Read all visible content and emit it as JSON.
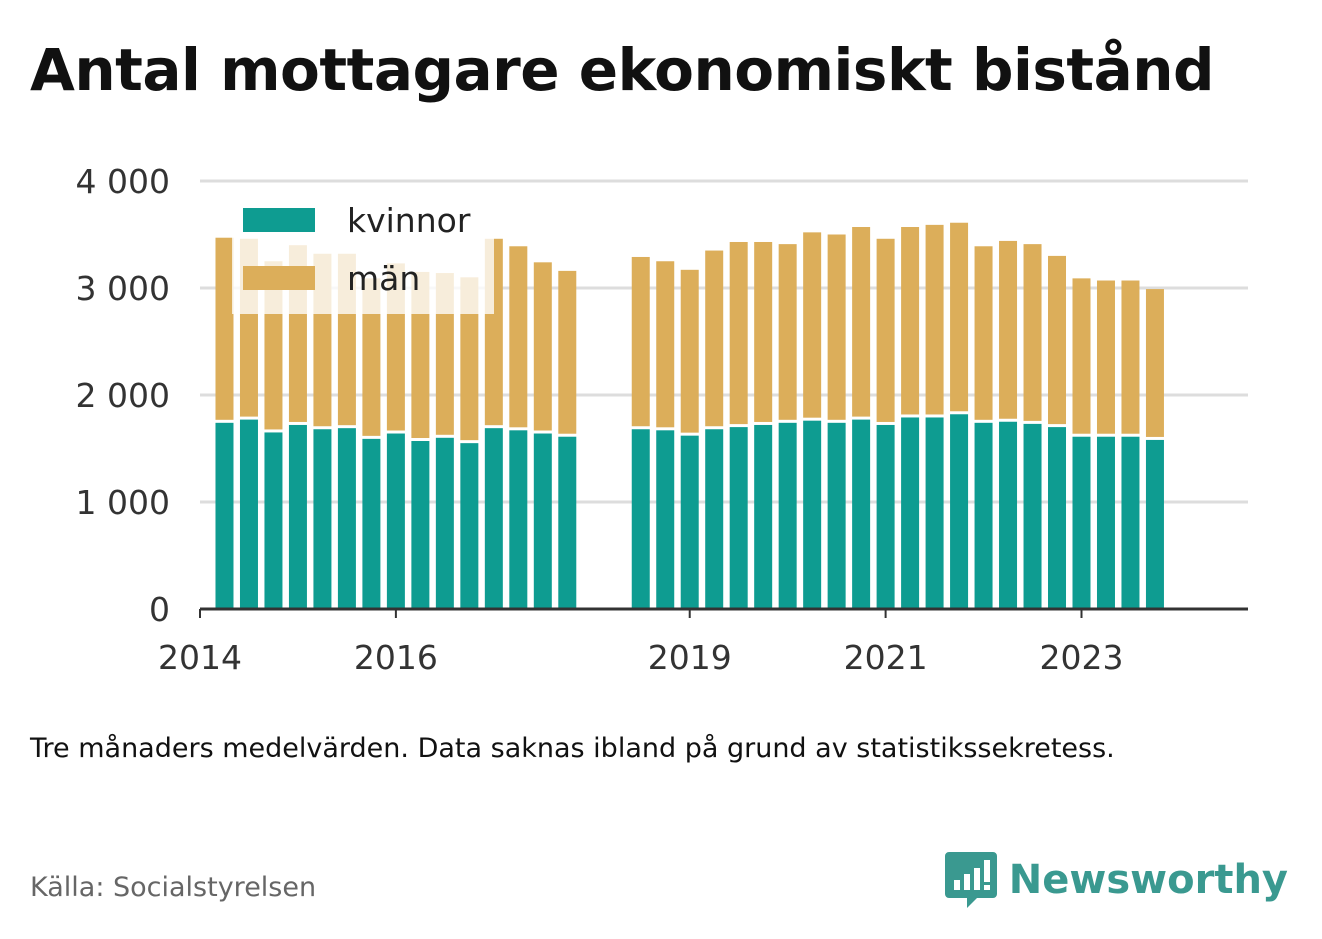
{
  "title": "Antal mottagare ekonomiskt bistånd",
  "note": "Tre månaders medelvärden. Data saknas ibland på grund av statistikssekretess.",
  "source": "Källa: Socialstyrelsen",
  "brand": {
    "name": "Newsworthy",
    "logo_icon": "bar-chart-speech-bubble-icon",
    "color": "#3a9990"
  },
  "chart_data": {
    "type": "bar",
    "stacked": true,
    "ylim": [
      0,
      4000
    ],
    "yticks": [
      {
        "value": 0,
        "label": "0"
      },
      {
        "value": 1000,
        "label": "1 000"
      },
      {
        "value": 2000,
        "label": "2 000"
      },
      {
        "value": 3000,
        "label": "3 000"
      },
      {
        "value": 4000,
        "label": "4 000"
      }
    ],
    "xrange": [
      2014.0,
      2024.7
    ],
    "xticks": [
      {
        "value": 2014,
        "label": "2014"
      },
      {
        "value": 2016,
        "label": "2016"
      },
      {
        "value": 2019,
        "label": "2019"
      },
      {
        "value": 2021,
        "label": "2021"
      },
      {
        "value": 2023,
        "label": "2023"
      }
    ],
    "grid": true,
    "legend_position": "top-left",
    "series": [
      {
        "name": "kvinnor",
        "color": "#0e9c91"
      },
      {
        "name": "män",
        "color": "#dcae5a"
      }
    ],
    "bars": [
      {
        "x": 2014.25,
        "kvinnor": 1740,
        "män": 1730
      },
      {
        "x": 2014.5,
        "kvinnor": 1770,
        "män": 1690
      },
      {
        "x": 2014.75,
        "kvinnor": 1650,
        "män": 1600
      },
      {
        "x": 2015.0,
        "kvinnor": 1720,
        "män": 1680
      },
      {
        "x": 2015.25,
        "kvinnor": 1680,
        "män": 1640
      },
      {
        "x": 2015.5,
        "kvinnor": 1690,
        "män": 1630
      },
      {
        "x": 2015.75,
        "kvinnor": 1590,
        "män": 1500
      },
      {
        "x": 2016.0,
        "kvinnor": 1640,
        "män": 1590
      },
      {
        "x": 2016.25,
        "kvinnor": 1570,
        "män": 1580
      },
      {
        "x": 2016.5,
        "kvinnor": 1600,
        "män": 1540
      },
      {
        "x": 2016.75,
        "kvinnor": 1550,
        "män": 1550
      },
      {
        "x": 2017.0,
        "kvinnor": 1690,
        "män": 1770
      },
      {
        "x": 2017.25,
        "kvinnor": 1670,
        "män": 1720
      },
      {
        "x": 2017.5,
        "kvinnor": 1640,
        "män": 1600
      },
      {
        "x": 2017.75,
        "kvinnor": 1610,
        "män": 1550
      },
      {
        "x": 2018.5,
        "kvinnor": 1680,
        "män": 1610
      },
      {
        "x": 2018.75,
        "kvinnor": 1670,
        "män": 1580
      },
      {
        "x": 2019.0,
        "kvinnor": 1620,
        "män": 1550
      },
      {
        "x": 2019.25,
        "kvinnor": 1680,
        "män": 1670
      },
      {
        "x": 2019.5,
        "kvinnor": 1700,
        "män": 1730
      },
      {
        "x": 2019.75,
        "kvinnor": 1720,
        "män": 1710
      },
      {
        "x": 2020.0,
        "kvinnor": 1740,
        "män": 1670
      },
      {
        "x": 2020.25,
        "kvinnor": 1760,
        "män": 1760
      },
      {
        "x": 2020.5,
        "kvinnor": 1740,
        "män": 1760
      },
      {
        "x": 2020.75,
        "kvinnor": 1770,
        "män": 1800
      },
      {
        "x": 2021.0,
        "kvinnor": 1720,
        "män": 1740
      },
      {
        "x": 2021.25,
        "kvinnor": 1790,
        "män": 1780
      },
      {
        "x": 2021.5,
        "kvinnor": 1790,
        "män": 1800
      },
      {
        "x": 2021.75,
        "kvinnor": 1820,
        "män": 1790
      },
      {
        "x": 2022.0,
        "kvinnor": 1740,
        "män": 1650
      },
      {
        "x": 2022.25,
        "kvinnor": 1750,
        "män": 1690
      },
      {
        "x": 2022.5,
        "kvinnor": 1730,
        "män": 1680
      },
      {
        "x": 2022.75,
        "kvinnor": 1700,
        "män": 1600
      },
      {
        "x": 2023.0,
        "kvinnor": 1610,
        "män": 1480
      },
      {
        "x": 2023.25,
        "kvinnor": 1610,
        "män": 1460
      },
      {
        "x": 2023.5,
        "kvinnor": 1610,
        "män": 1460
      },
      {
        "x": 2023.75,
        "kvinnor": 1580,
        "män": 1410
      }
    ]
  }
}
